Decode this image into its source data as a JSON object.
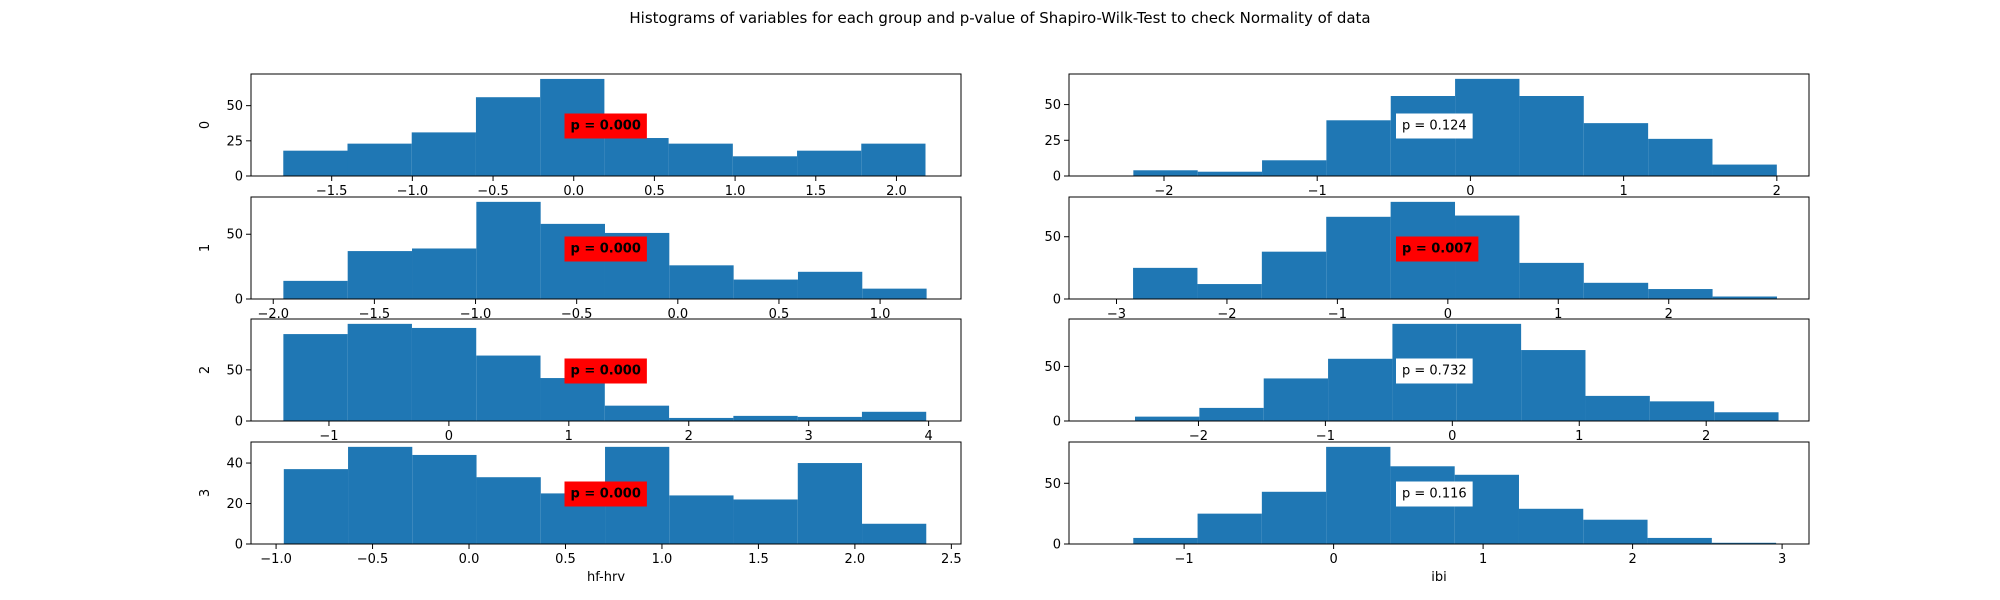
{
  "title": "Histograms of variables for each group and p-value of Shapiro-Wilk-Test to check Normality of data",
  "chart_data": [
    {
      "type": "histogram",
      "ylabel": "0",
      "color": "#1f77b4",
      "bins": [
        -1.8,
        -1.402,
        -1.004,
        -0.606,
        -0.208,
        0.19,
        0.588,
        0.986,
        1.384,
        1.782,
        2.18
      ],
      "values": [
        18,
        23,
        31,
        56,
        69,
        27,
        23,
        14,
        18,
        23
      ],
      "xlim": [
        -2.0,
        2.4
      ],
      "ylim": [
        0,
        72.5
      ],
      "xticks": [
        {
          "value": -1.5,
          "label": "−1.5"
        },
        {
          "value": -1.0,
          "label": "−1.0"
        },
        {
          "value": -0.5,
          "label": "−0.5"
        },
        {
          "value": 0,
          "label": "0.0"
        },
        0.5,
        {
          "value": 1,
          "label": "1.0"
        },
        1.5,
        {
          "value": 2,
          "label": "2.0"
        }
      ],
      "yticks": [
        0,
        25,
        50
      ],
      "annotation": "p = 0.000",
      "annotation_box": "red",
      "annotation_bold": true
    },
    {
      "type": "histogram",
      "color": "#1f77b4",
      "bins": [
        -2.2,
        -1.78,
        -1.36,
        -0.94,
        -0.52,
        -0.1,
        0.32,
        0.74,
        1.16,
        1.58,
        2.0
      ],
      "values": [
        4,
        3,
        11,
        39,
        56,
        68,
        56,
        37,
        26,
        8
      ],
      "xlim": [
        -2.62,
        2.21
      ],
      "ylim": [
        0,
        71.4
      ],
      "xticks": [
        {
          "value": -2,
          "label": "−2"
        },
        {
          "value": -1,
          "label": "−1"
        },
        0,
        1,
        2
      ],
      "yticks": [
        0,
        25,
        50
      ],
      "annotation": "p = 0.124",
      "annotation_box": "white",
      "annotation_bold": false
    },
    {
      "type": "histogram",
      "ylabel": "1",
      "color": "#1f77b4",
      "bins": [
        -1.95,
        -1.632,
        -1.314,
        -0.996,
        -0.678,
        -0.36,
        -0.042,
        0.276,
        0.594,
        0.912,
        1.23
      ],
      "values": [
        14,
        37,
        39,
        75,
        58,
        51,
        26,
        15,
        21,
        8
      ],
      "xlim": [
        -2.11,
        1.4
      ],
      "ylim": [
        0,
        78.75
      ],
      "xticks": [
        {
          "value": -2,
          "label": "−2.0"
        },
        {
          "value": -1.5,
          "label": "−1.5"
        },
        {
          "value": -1,
          "label": "−1.0"
        },
        {
          "value": -0.5,
          "label": "−0.5"
        },
        {
          "value": 0,
          "label": "0.0"
        },
        0.5,
        {
          "value": 1,
          "label": "1.0"
        }
      ],
      "yticks": [
        0,
        50
      ],
      "annotation": "p = 0.000",
      "annotation_box": "red",
      "annotation_bold": true
    },
    {
      "type": "histogram",
      "color": "#1f77b4",
      "bins": [
        -2.85,
        -2.267,
        -1.684,
        -1.101,
        -0.518,
        0.065,
        0.648,
        1.231,
        1.814,
        2.397,
        2.98
      ],
      "values": [
        25,
        12,
        38,
        66,
        78,
        67,
        29,
        13,
        8,
        2
      ],
      "xlim": [
        -3.43,
        3.27
      ],
      "ylim": [
        0,
        81.9
      ],
      "xticks": [
        {
          "value": -3,
          "label": "−3"
        },
        {
          "value": -2,
          "label": "−2"
        },
        {
          "value": -1,
          "label": "−1"
        },
        0,
        1,
        2
      ],
      "yticks": [
        0,
        50
      ],
      "annotation": "p = 0.007",
      "annotation_box": "red",
      "annotation_bold": true
    },
    {
      "type": "histogram",
      "ylabel": "2",
      "color": "#1f77b4",
      "bins": [
        -1.38,
        -0.844,
        -0.308,
        0.228,
        0.764,
        1.3,
        1.836,
        2.372,
        2.908,
        3.444,
        3.98
      ],
      "values": [
        85,
        95,
        91,
        64,
        42,
        15,
        3,
        5,
        4,
        9
      ],
      "xlim": [
        -1.65,
        4.27
      ],
      "ylim": [
        0,
        99.75
      ],
      "xticks": [
        {
          "value": -1,
          "label": "−1"
        },
        0,
        1,
        2,
        3,
        4
      ],
      "yticks": [
        0,
        50
      ],
      "annotation": "p = 0.000",
      "annotation_box": "red",
      "annotation_bold": true
    },
    {
      "type": "histogram",
      "color": "#1f77b4",
      "bins": [
        -2.5,
        -1.993,
        -1.486,
        -0.979,
        -0.472,
        0.035,
        0.542,
        1.049,
        1.556,
        2.063,
        2.57
      ],
      "values": [
        4,
        12,
        39,
        57,
        89,
        89,
        65,
        23,
        18,
        8
      ],
      "xlim": [
        -3.02,
        2.81
      ],
      "ylim": [
        0,
        93.45
      ],
      "xticks": [
        {
          "value": -2,
          "label": "−2"
        },
        {
          "value": -1,
          "label": "−1"
        },
        0,
        1,
        2
      ],
      "yticks": [
        0,
        50
      ],
      "annotation": "p = 0.732",
      "annotation_box": "white",
      "annotation_bold": false
    },
    {
      "type": "histogram",
      "ylabel": "3",
      "xlabel": "hf-hrv",
      "color": "#1f77b4",
      "bins": [
        -0.96,
        -0.627,
        -0.294,
        0.039,
        0.372,
        0.705,
        1.038,
        1.371,
        1.704,
        2.037,
        2.37
      ],
      "values": [
        37,
        48,
        44,
        33,
        25,
        48,
        24,
        22,
        40,
        10
      ],
      "xlim": [
        -1.13,
        2.55
      ],
      "ylim": [
        0,
        50.4
      ],
      "xticks": [
        {
          "value": -1,
          "label": "−1.0"
        },
        {
          "value": -0.5,
          "label": "−0.5"
        },
        {
          "value": 0,
          "label": "0.0"
        },
        0.5,
        {
          "value": 1,
          "label": "1.0"
        },
        1.5,
        {
          "value": 2,
          "label": "2.0"
        },
        2.5
      ],
      "yticks": [
        0,
        20,
        40
      ],
      "annotation": "p = 0.000",
      "annotation_box": "red",
      "annotation_bold": true
    },
    {
      "type": "histogram",
      "xlabel": "ibi",
      "color": "#1f77b4",
      "bins": [
        -1.34,
        -0.91,
        -0.48,
        -0.05,
        0.38,
        0.81,
        1.24,
        1.67,
        2.1,
        2.53,
        2.96
      ],
      "values": [
        5,
        25,
        43,
        80,
        64,
        57,
        29,
        20,
        5,
        1
      ],
      "xlim": [
        -1.77,
        3.18
      ],
      "ylim": [
        0,
        84
      ],
      "xticks": [
        {
          "value": -1,
          "label": "−1"
        },
        0,
        1,
        2,
        3
      ],
      "yticks": [
        0,
        50
      ],
      "annotation": "p = 0.116",
      "annotation_box": "white",
      "annotation_bold": false
    }
  ]
}
